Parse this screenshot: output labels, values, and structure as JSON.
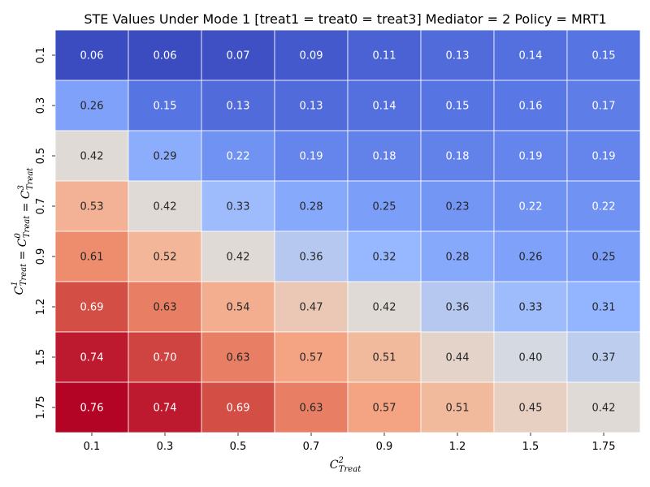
{
  "chart_data": {
    "type": "heatmap",
    "title": "STE Values Under Mode 1 [treat1 = treat0 = treat3] Mediator = 2 Policy = MRT1",
    "xlabel": "C²Treat",
    "ylabel": "C¹Treat = C⁰Treat = C³Treat",
    "x_categories": [
      "0.1",
      "0.3",
      "0.5",
      "0.7",
      "0.9",
      "1.2",
      "1.5",
      "1.75"
    ],
    "y_categories": [
      "0.1",
      "0.3",
      "0.5",
      "0.7",
      "0.9",
      "1.2",
      "1.5",
      "1.75"
    ],
    "values": [
      [
        0.06,
        0.06,
        0.07,
        0.09,
        0.11,
        0.13,
        0.14,
        0.15
      ],
      [
        0.26,
        0.15,
        0.13,
        0.13,
        0.14,
        0.15,
        0.16,
        0.17
      ],
      [
        0.42,
        0.29,
        0.22,
        0.19,
        0.18,
        0.18,
        0.19,
        0.19
      ],
      [
        0.53,
        0.42,
        0.33,
        0.28,
        0.25,
        0.23,
        0.22,
        0.22
      ],
      [
        0.61,
        0.52,
        0.42,
        0.36,
        0.32,
        0.28,
        0.26,
        0.25
      ],
      [
        0.69,
        0.63,
        0.54,
        0.47,
        0.42,
        0.36,
        0.33,
        0.31
      ],
      [
        0.74,
        0.7,
        0.63,
        0.57,
        0.51,
        0.44,
        0.4,
        0.37
      ],
      [
        0.76,
        0.74,
        0.69,
        0.63,
        0.57,
        0.51,
        0.45,
        0.42
      ]
    ],
    "colormap": "coolwarm",
    "colorbar": false,
    "grid_lines": "white"
  }
}
